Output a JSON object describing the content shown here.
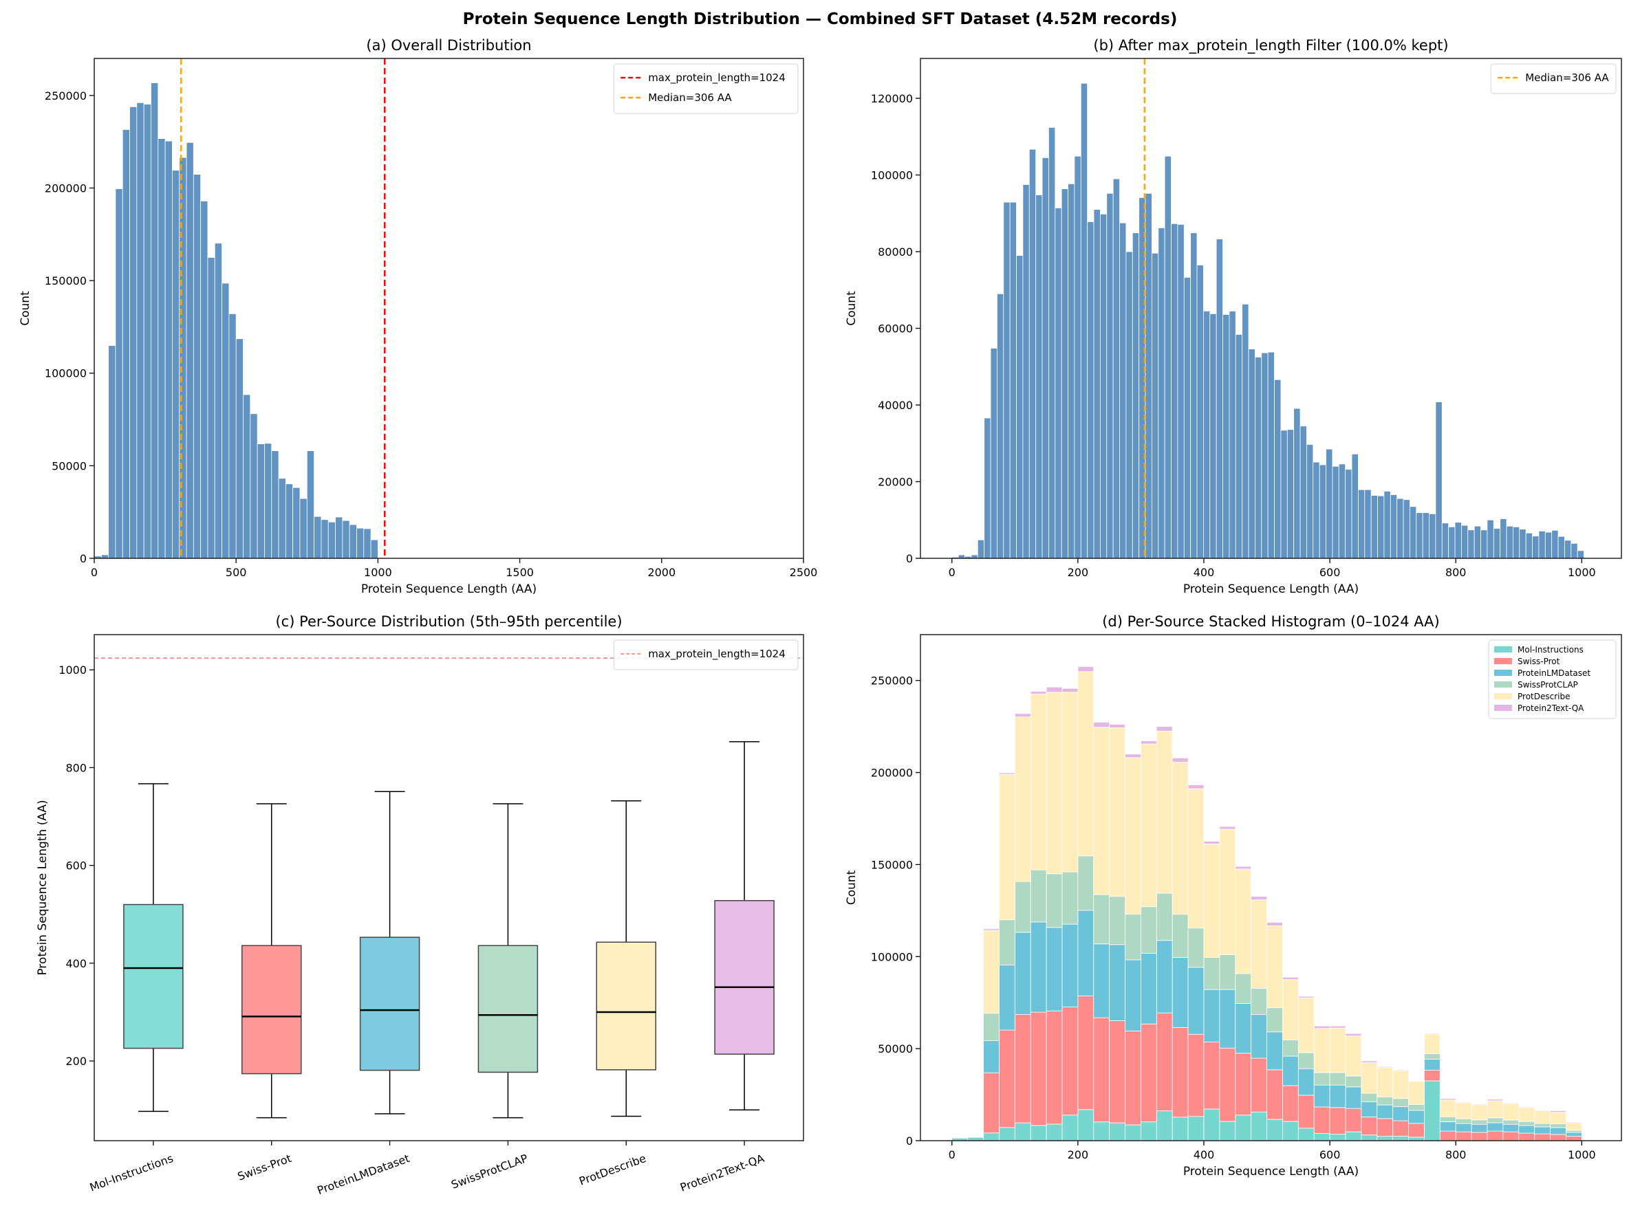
{
  "title": "Protein Sequence Length Distribution — Combined SFT Dataset (4.52M records)",
  "chart_data": [
    {
      "id": "a",
      "type": "bar",
      "title": "(a) Overall Distribution",
      "xlabel": "Protein Sequence Length (AA)",
      "ylabel": "Count",
      "xlim": [
        0,
        2500
      ],
      "ylim": [
        0,
        270000
      ],
      "xticks": [
        0,
        500,
        1000,
        1500,
        2000,
        2500
      ],
      "yticks": [
        0,
        50000,
        100000,
        150000,
        200000,
        250000
      ],
      "bin_start": 0,
      "bin_width": 25,
      "values": [
        1200,
        1900,
        114900,
        199600,
        231600,
        243900,
        246100,
        245300,
        256800,
        226700,
        225400,
        209600,
        216500,
        224600,
        207400,
        193000,
        162500,
        170200,
        148600,
        132100,
        118600,
        88400,
        78100,
        61800,
        62100,
        58100,
        43200,
        40200,
        38200,
        32300,
        58100,
        22600,
        20900,
        19600,
        22300,
        20400,
        18200,
        16300,
        16000,
        10000
      ],
      "color": "#6194c2",
      "vlines": [
        {
          "x": 1024,
          "label": "max_protein_length=1024",
          "color": "#ff0000"
        },
        {
          "x": 306,
          "label": "Median=306 AA",
          "color": "#ffa500"
        }
      ],
      "legend": "top-right",
      "grid": false
    },
    {
      "id": "b",
      "type": "bar",
      "title": "(b) After max_protein_length Filter (100.0% kept)",
      "xlabel": "Protein Sequence Length (AA)",
      "ylabel": "Count",
      "xlim": [
        -50,
        1063
      ],
      "ylim": [
        0,
        130400
      ],
      "xticks": [
        0,
        200,
        400,
        600,
        800,
        1000
      ],
      "yticks": [
        0,
        20000,
        40000,
        60000,
        80000,
        100000,
        120000
      ],
      "bin_start": 0,
      "bin_width": 10.24,
      "values": [
        300,
        900,
        500,
        900,
        4800,
        36600,
        54800,
        69000,
        92900,
        92900,
        79000,
        97500,
        106700,
        94800,
        104500,
        112400,
        91400,
        96400,
        97700,
        104900,
        123900,
        87800,
        91000,
        89800,
        95200,
        99000,
        87500,
        80000,
        84900,
        94100,
        95200,
        79600,
        86200,
        104900,
        87300,
        87100,
        73300,
        84900,
        76500,
        64500,
        63800,
        83300,
        63600,
        64500,
        58400,
        66300,
        54600,
        52500,
        53600,
        53800,
        46600,
        33400,
        33600,
        39100,
        34500,
        29700,
        25100,
        24400,
        28500,
        24000,
        24600,
        23200,
        27200,
        17900,
        17900,
        16400,
        16300,
        17500,
        16600,
        15600,
        15300,
        13500,
        11900,
        11900,
        11600,
        40800,
        9200,
        8200,
        9400,
        8600,
        7400,
        8400,
        7400,
        10000,
        7800,
        10300,
        8400,
        8200,
        7600,
        6600,
        5800,
        7100,
        6800,
        7300,
        5700,
        4700,
        3900,
        2000
      ],
      "color": "#6194c2",
      "vlines": [
        {
          "x": 306,
          "label": "Median=306 AA",
          "color": "#ffa500"
        }
      ],
      "legend": "top-right",
      "grid": false
    },
    {
      "id": "c",
      "type": "box",
      "title": "(c) Per-Source Distribution (5th–95th percentile)",
      "xlabel": "",
      "ylabel": "Protein Sequence Length (AA)",
      "ylim": [
        37,
        1072
      ],
      "yticks": [
        200,
        400,
        600,
        800,
        1000
      ],
      "categories": [
        "Mol-Instructions",
        "Swiss-Prot",
        "ProteinLMDataset",
        "SwissProtCLAP",
        "ProtDescribe",
        "Protein2Text-QA"
      ],
      "boxes": [
        {
          "p5": 97,
          "q1": 226,
          "median": 390,
          "q3": 520,
          "p95": 767,
          "color": "#85ddd5"
        },
        {
          "p5": 84,
          "q1": 174,
          "median": 291,
          "q3": 436,
          "p95": 726,
          "color": "#ff9999"
        },
        {
          "p5": 92,
          "q1": 181,
          "median": 304,
          "q3": 453,
          "p95": 751,
          "color": "#80cbde"
        },
        {
          "p5": 84,
          "q1": 177,
          "median": 294,
          "q3": 436,
          "p95": 726,
          "color": "#b5dcc9"
        },
        {
          "p5": 87,
          "q1": 182,
          "median": 300,
          "q3": 443,
          "p95": 732,
          "color": "#fef0c3"
        },
        {
          "p5": 100,
          "q1": 214,
          "median": 351,
          "q3": 528,
          "p95": 853,
          "color": "#e7bde7"
        }
      ],
      "hline": {
        "y": 1024,
        "label": "max_protein_length=1024",
        "color": "#ff7070"
      },
      "legend": "top-right",
      "grid": false
    },
    {
      "id": "d",
      "type": "stacked-bar",
      "title": "(d) Per-Source Stacked Histogram (0–1024 AA)",
      "xlabel": "Protein Sequence Length (AA)",
      "ylabel": "Count",
      "xlim": [
        -50,
        1063
      ],
      "ylim": [
        0,
        274900
      ],
      "xticks": [
        0,
        200,
        400,
        600,
        800,
        1000
      ],
      "yticks": [
        0,
        50000,
        100000,
        150000,
        200000,
        250000
      ],
      "bin_start": 0,
      "bin_width": 25,
      "legend": "top-right",
      "grid": false,
      "series": [
        {
          "name": "Mol-Instructions",
          "color": "#76d7cf",
          "values": [
            1400,
            1800,
            4200,
            7200,
            9700,
            8300,
            9000,
            13900,
            16900,
            10200,
            9700,
            8600,
            10200,
            16200,
            12800,
            13200,
            17200,
            10500,
            13900,
            15600,
            11600,
            10500,
            6800,
            3900,
            3500,
            4800,
            3100,
            2400,
            2400,
            1900,
            32500,
            0,
            0,
            0,
            0,
            0,
            0,
            0,
            0,
            0
          ]
        },
        {
          "name": "Swiss-Prot",
          "color": "#ff8a8a",
          "values": [
            0,
            0,
            32700,
            52900,
            58800,
            61500,
            61500,
            58700,
            61700,
            56600,
            55500,
            51000,
            53200,
            53200,
            48700,
            44600,
            36400,
            39800,
            33600,
            29200,
            26900,
            19400,
            17900,
            14400,
            14500,
            12700,
            9800,
            9600,
            8400,
            7500,
            5800,
            5200,
            4800,
            4500,
            5200,
            4800,
            4100,
            3700,
            3400,
            2400
          ]
        },
        {
          "name": "ProteinLMDataset",
          "color": "#6bc3d9",
          "values": [
            0,
            0,
            17400,
            35300,
            44700,
            49000,
            45300,
            45000,
            46500,
            40100,
            41300,
            38600,
            38400,
            39400,
            38000,
            36400,
            28500,
            31800,
            27000,
            23700,
            20600,
            16000,
            14400,
            11900,
            12200,
            11700,
            8300,
            7400,
            7700,
            7100,
            6000,
            5100,
            4500,
            4400,
            4500,
            4100,
            4100,
            3800,
            3700,
            2100
          ]
        },
        {
          "name": "SwissProtCLAP",
          "color": "#afd8c3",
          "values": [
            0,
            0,
            14900,
            24600,
            27600,
            28300,
            29200,
            28400,
            29600,
            26800,
            26200,
            24800,
            25300,
            25600,
            23500,
            21300,
            17400,
            19000,
            16200,
            14300,
            13100,
            8900,
            8700,
            6800,
            6800,
            5900,
            4600,
            4400,
            4400,
            3200,
            3000,
            2700,
            2600,
            2400,
            2700,
            2300,
            2200,
            1900,
            2000,
            1100
          ]
        },
        {
          "name": "ProtDescribe",
          "color": "#ffeebb",
          "values": [
            0,
            0,
            45000,
            79000,
            89400,
            95600,
            98600,
            97600,
            100100,
            90900,
            91600,
            85100,
            88400,
            88100,
            82600,
            75700,
            61700,
            68100,
            56900,
            48000,
            44500,
            32700,
            29800,
            24000,
            24200,
            21800,
            16600,
            16200,
            15200,
            12500,
            10600,
            9100,
            8700,
            8200,
            9300,
            9000,
            7600,
            7100,
            6300,
            4200
          ]
        },
        {
          "name": "Protein2Text-QA",
          "color": "#e4b6e3",
          "values": [
            0,
            0,
            900,
            800,
            1800,
            1400,
            2800,
            2100,
            2700,
            2700,
            1900,
            1900,
            1700,
            2500,
            2300,
            2100,
            1500,
            1500,
            1400,
            1900,
            1900,
            1300,
            800,
            1300,
            1100,
            1300,
            900,
            400,
            400,
            300,
            400,
            800,
            400,
            400,
            800,
            400,
            400,
            300,
            900,
            400
          ]
        }
      ]
    }
  ]
}
